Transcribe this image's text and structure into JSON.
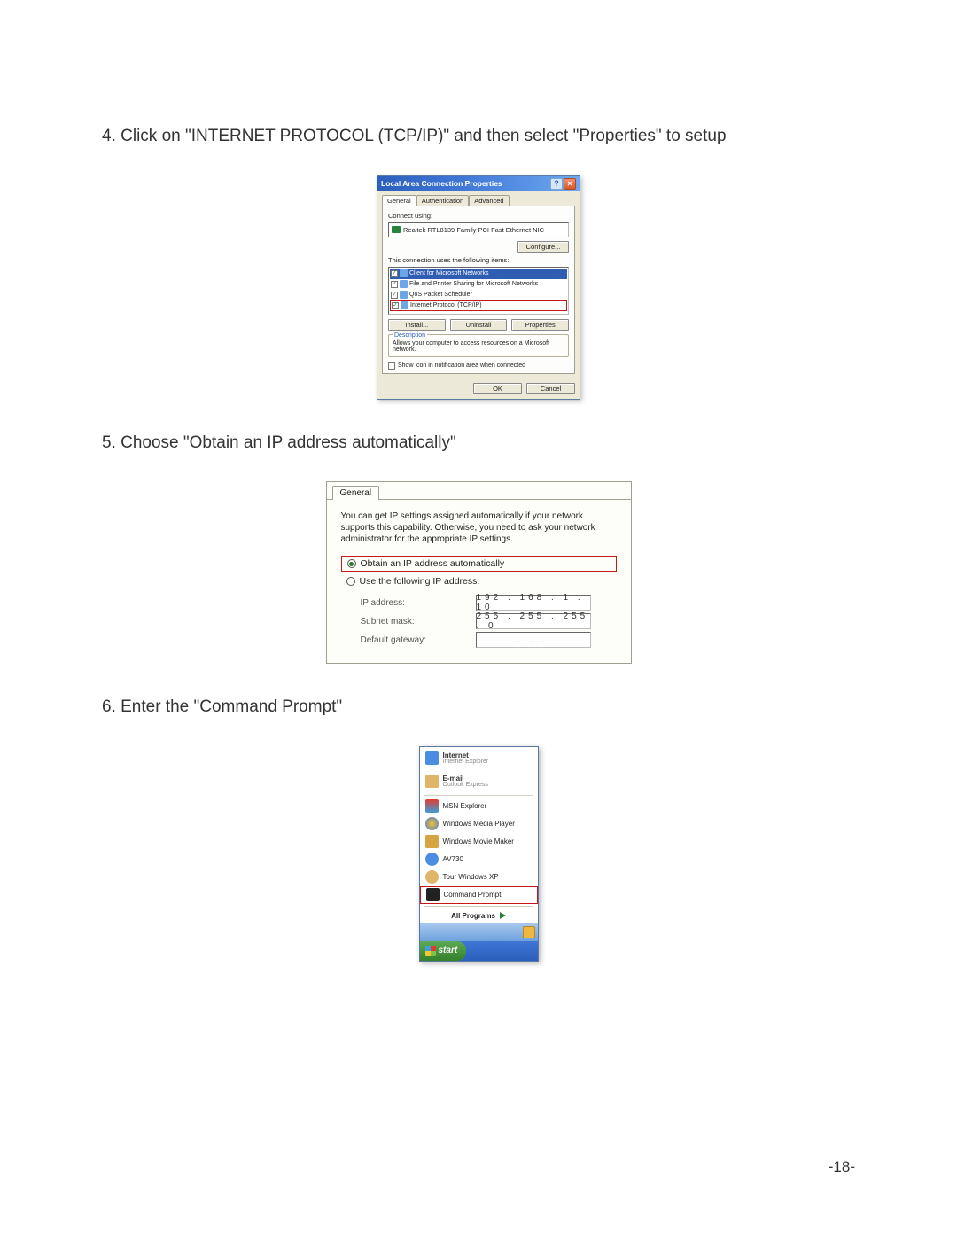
{
  "step4": "4. Click on \"INTERNET PROTOCOL (TCP/IP)\" and then select \"Properties\" to setup",
  "step5": "5. Choose \"Obtain an IP address automatically\"",
  "step6": "6. Enter the \"Command Prompt\"",
  "page_number": "-18-",
  "dlg1": {
    "title": "Local Area Connection Properties",
    "help": "?",
    "close": "×",
    "tabs": {
      "general": "General",
      "auth": "Authentication",
      "adv": "Advanced"
    },
    "connect_using": "Connect using:",
    "adapter": "Realtek RTL8139 Family PCI Fast Ethernet NIC",
    "configure": "Configure...",
    "this_conn": "This connection uses the following items:",
    "items": {
      "client": "Client for Microsoft Networks",
      "fps": "File and Printer Sharing for Microsoft Networks",
      "qos": "QoS Packet Scheduler",
      "tcpip": "Internet Protocol (TCP/IP)"
    },
    "install": "Install...",
    "uninstall": "Uninstall",
    "properties": "Properties",
    "desc_legend": "Description",
    "desc_text": "Allows your computer to access resources on a Microsoft network.",
    "show_icon": "Show icon in notification area when connected",
    "ok": "OK",
    "cancel": "Cancel"
  },
  "dlg2": {
    "tab": "General",
    "info": "You can get IP settings assigned automatically if your network supports this capability. Otherwise, you need to ask your network administrator for the appropriate IP settings.",
    "obtain": "Obtain an IP address automatically",
    "usefollow": "Use the following IP address:",
    "ip_label": "IP address:",
    "ip_value": "192 . 168 .   1  .  10",
    "subnet_label": "Subnet mask:",
    "subnet_value": "255 . 255 . 255 .   0",
    "gateway_label": "Default gateway:",
    "gateway_value": ".      .      ."
  },
  "startmenu": {
    "internet": "Internet",
    "internet_sub": "Internet Explorer",
    "email": "E-mail",
    "email_sub": "Outlook Express",
    "msn": "MSN Explorer",
    "wmp": "Windows Media Player",
    "wmm": "Windows Movie Maker",
    "av730": "AV730",
    "tour": "Tour Windows XP",
    "cmd": "Command Prompt",
    "all": "All Programs",
    "start": "start"
  },
  "colors": {
    "xp_blue_dark": "#2b5fbb",
    "xp_blue_light": "#6da8f0",
    "xp_beige": "#ece9d8",
    "red_highlight": "#c41818",
    "green_start": "#34802c"
  }
}
